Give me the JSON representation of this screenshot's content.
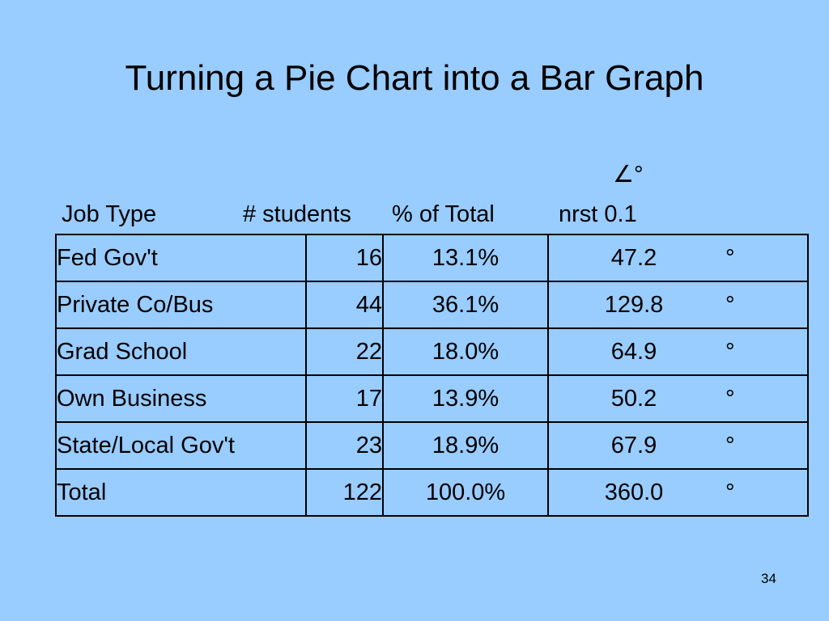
{
  "slide": {
    "title": "Turning a Pie Chart into a Bar Graph",
    "angle_header": "∠°",
    "page_number": "34"
  },
  "table": {
    "headers": {
      "job_type": "Job Type",
      "students": "# students",
      "percent": "% of Total",
      "degrees": "nrst 0.1"
    },
    "rows": [
      {
        "job_type": "Fed Gov't",
        "students": "16",
        "percent": "13.1%",
        "degrees": "47.2",
        "unit": "°"
      },
      {
        "job_type": "Private Co/Bus",
        "students": "44",
        "percent": "36.1%",
        "degrees": "129.8",
        "unit": "°"
      },
      {
        "job_type": "Grad School",
        "students": "22",
        "percent": "18.0%",
        "degrees": "64.9",
        "unit": "°"
      },
      {
        "job_type": "Own Business",
        "students": "17",
        "percent": "13.9%",
        "degrees": "50.2",
        "unit": "°"
      },
      {
        "job_type": "State/Local Gov't",
        "students": "23",
        "percent": "18.9%",
        "degrees": "67.9",
        "unit": "°"
      },
      {
        "job_type": "Total",
        "students": "122",
        "percent": "100.0%",
        "degrees": "360.0",
        "unit": "°"
      }
    ]
  }
}
